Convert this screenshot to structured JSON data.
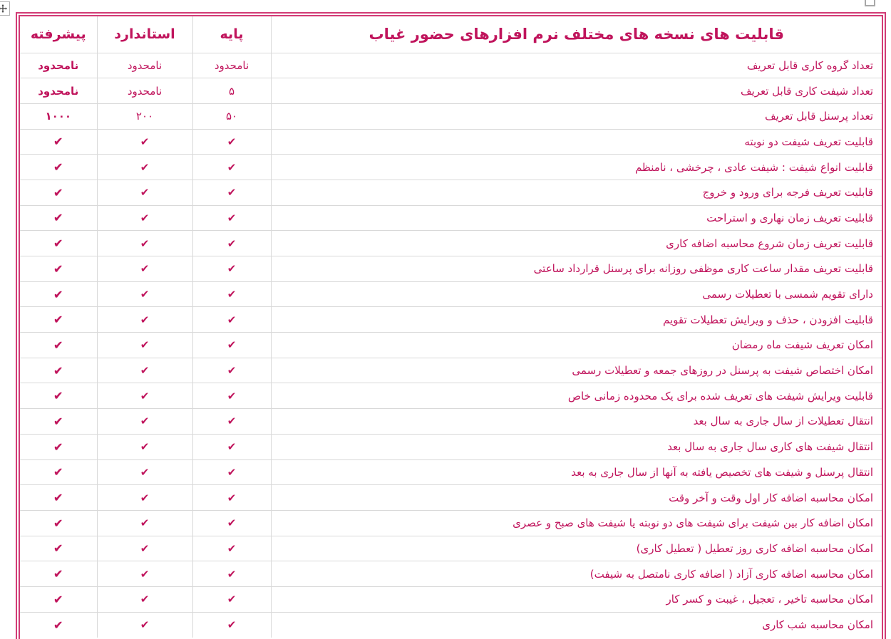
{
  "colors": {
    "accent": "#C0145C",
    "table_border": "#D23B76",
    "gridline": "#D9D9D9"
  },
  "icons": {
    "check": "✔",
    "move_handle": "four-way-arrow",
    "resize_handle": "square-outline"
  },
  "table": {
    "title": "قابلیت های نسخه های مختلف نرم افزارهای حضور غیاب",
    "columns": {
      "basic": "پایه",
      "standard": "استاندارد",
      "advanced": "پیشرفته"
    },
    "rows": [
      {
        "feature": "تعداد گروه کاری قابل تعریف",
        "basic": "نامحدود",
        "standard": "نامحدود",
        "advanced": "نامحدود"
      },
      {
        "feature": "تعداد شیفت کاری قابل تعریف",
        "basic": "۵",
        "standard": "نامحدود",
        "advanced": "نامحدود"
      },
      {
        "feature": "تعداد پرسنل قابل تعریف",
        "basic": "۵۰",
        "standard": "۲۰۰",
        "advanced": "۱۰۰۰"
      },
      {
        "feature": "قابلیت تعریف شیفت دو نوبته",
        "basic": "✔",
        "standard": "✔",
        "advanced": "✔"
      },
      {
        "feature": "قابلیت انواع شیفت : شیفت عادی ، چرخشی ، نامنظم",
        "basic": "✔",
        "standard": "✔",
        "advanced": "✔"
      },
      {
        "feature": "قابلیت تعریف فرجه برای ورود و خروج",
        "basic": "✔",
        "standard": "✔",
        "advanced": "✔"
      },
      {
        "feature": "قابلیت تعریف زمان نهاری و استراحت",
        "basic": "✔",
        "standard": "✔",
        "advanced": "✔"
      },
      {
        "feature": "قابلیت تعریف زمان شروع محاسبه اضافه کاری",
        "basic": "✔",
        "standard": "✔",
        "advanced": "✔"
      },
      {
        "feature": "قابلیت تعریف مقدار ساعت کاری موظفی روزانه برای پرسنل قرارداد ساعتی",
        "basic": "✔",
        "standard": "✔",
        "advanced": "✔"
      },
      {
        "feature": "دارای تقویم شمسی با تعطیلات رسمی",
        "basic": "✔",
        "standard": "✔",
        "advanced": "✔"
      },
      {
        "feature": "قابلیت افزودن ، حذف و ویرایش تعطیلات تقویم",
        "basic": "✔",
        "standard": "✔",
        "advanced": "✔"
      },
      {
        "feature": "امکان تعریف شیفت ماه رمضان",
        "basic": "✔",
        "standard": "✔",
        "advanced": "✔"
      },
      {
        "feature": "امکان اختصاص شیفت به پرسنل در روزهای جمعه و تعطیلات رسمی",
        "basic": "✔",
        "standard": "✔",
        "advanced": "✔"
      },
      {
        "feature": "قابلیت ویرایش شیفت های تعریف شده برای یک محدوده زمانی خاص",
        "basic": "✔",
        "standard": "✔",
        "advanced": "✔"
      },
      {
        "feature": "انتقال تعطیلات از سال جاری به سال بعد",
        "basic": "✔",
        "standard": "✔",
        "advanced": "✔"
      },
      {
        "feature": "انتقال شیفت های کاری سال جاری به سال بعد",
        "basic": "✔",
        "standard": "✔",
        "advanced": "✔"
      },
      {
        "feature": "انتقال پرسنل و شیفت های تخصیص یافته به آنها از سال جاری به بعد",
        "basic": "✔",
        "standard": "✔",
        "advanced": "✔"
      },
      {
        "feature": "امکان محاسبه اضافه کار اول وقت و آخر وقت",
        "basic": "✔",
        "standard": "✔",
        "advanced": "✔"
      },
      {
        "feature": "امکان اضافه کار بین شیفت برای شیفت های دو نوبته یا شیفت های صبح و عصری",
        "basic": "✔",
        "standard": "✔",
        "advanced": "✔"
      },
      {
        "feature": "امکان محاسبه اضافه کاری روز تعطیل ( تعطیل کاری)",
        "basic": "✔",
        "standard": "✔",
        "advanced": "✔"
      },
      {
        "feature": "امکان محاسبه اضافه کاری آزاد ( اضافه کاری نامتصل به شیفت)",
        "basic": "✔",
        "standard": "✔",
        "advanced": "✔"
      },
      {
        "feature": "امکان محاسبه تاخیر ، تعجیل ، غیبت و کسر کار",
        "basic": "✔",
        "standard": "✔",
        "advanced": "✔"
      },
      {
        "feature": "امکان محاسبه شب کاری",
        "basic": "✔",
        "standard": "✔",
        "advanced": "✔"
      }
    ]
  }
}
